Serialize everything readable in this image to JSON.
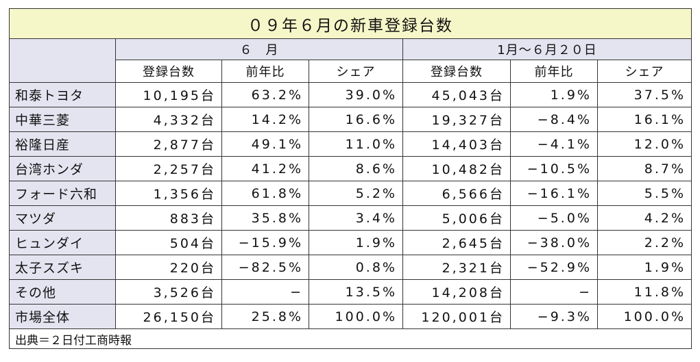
{
  "title": "０９年６月の新車登録台数",
  "group_headers": [
    "６　月",
    "1月～６月２０日"
  ],
  "sub_headers": [
    "登録台数",
    "前年比",
    "シェア",
    "登録台数",
    "前年比",
    "シェア"
  ],
  "rows": [
    {
      "name": "和泰トヨタ",
      "cells": [
        "10,195台",
        "63.2%",
        "39.0%",
        "45,043台",
        "1.9%",
        "37.5%"
      ]
    },
    {
      "name": "中華三菱",
      "cells": [
        "4,332台",
        "14.2%",
        "16.6%",
        "19,327台",
        "−8.4%",
        "16.1%"
      ]
    },
    {
      "name": "裕隆日産",
      "cells": [
        "2,877台",
        "49.1%",
        "11.0%",
        "14,403台",
        "−4.1%",
        "12.0%"
      ]
    },
    {
      "name": "台湾ホンダ",
      "cells": [
        "2,257台",
        "41.2%",
        "8.6%",
        "10,482台",
        "−10.5%",
        "8.7%"
      ]
    },
    {
      "name": "フォード六和",
      "cells": [
        "1,356台",
        "61.8%",
        "5.2%",
        "6,566台",
        "−16.1%",
        "5.5%"
      ]
    },
    {
      "name": "マツダ",
      "cells": [
        "883台",
        "35.8%",
        "3.4%",
        "5,006台",
        "−5.0%",
        "4.2%"
      ]
    },
    {
      "name": "ヒュンダイ",
      "cells": [
        "504台",
        "−15.9%",
        "1.9%",
        "2,645台",
        "−38.0%",
        "2.2%"
      ]
    },
    {
      "name": "太子スズキ",
      "cells": [
        "220台",
        "−82.5%",
        "0.8%",
        "2,321台",
        "−52.9%",
        "1.9%"
      ]
    },
    {
      "name": "その他",
      "cells": [
        "3,526台",
        "−",
        "13.5%",
        "14,208台",
        "−",
        "11.8%"
      ]
    },
    {
      "name": "市場全体",
      "cells": [
        "26,150台",
        "25.8%",
        "100.0%",
        "120,001台",
        "−9.3%",
        "100.0%"
      ]
    }
  ],
  "source": "出典＝２日付工商時報"
}
